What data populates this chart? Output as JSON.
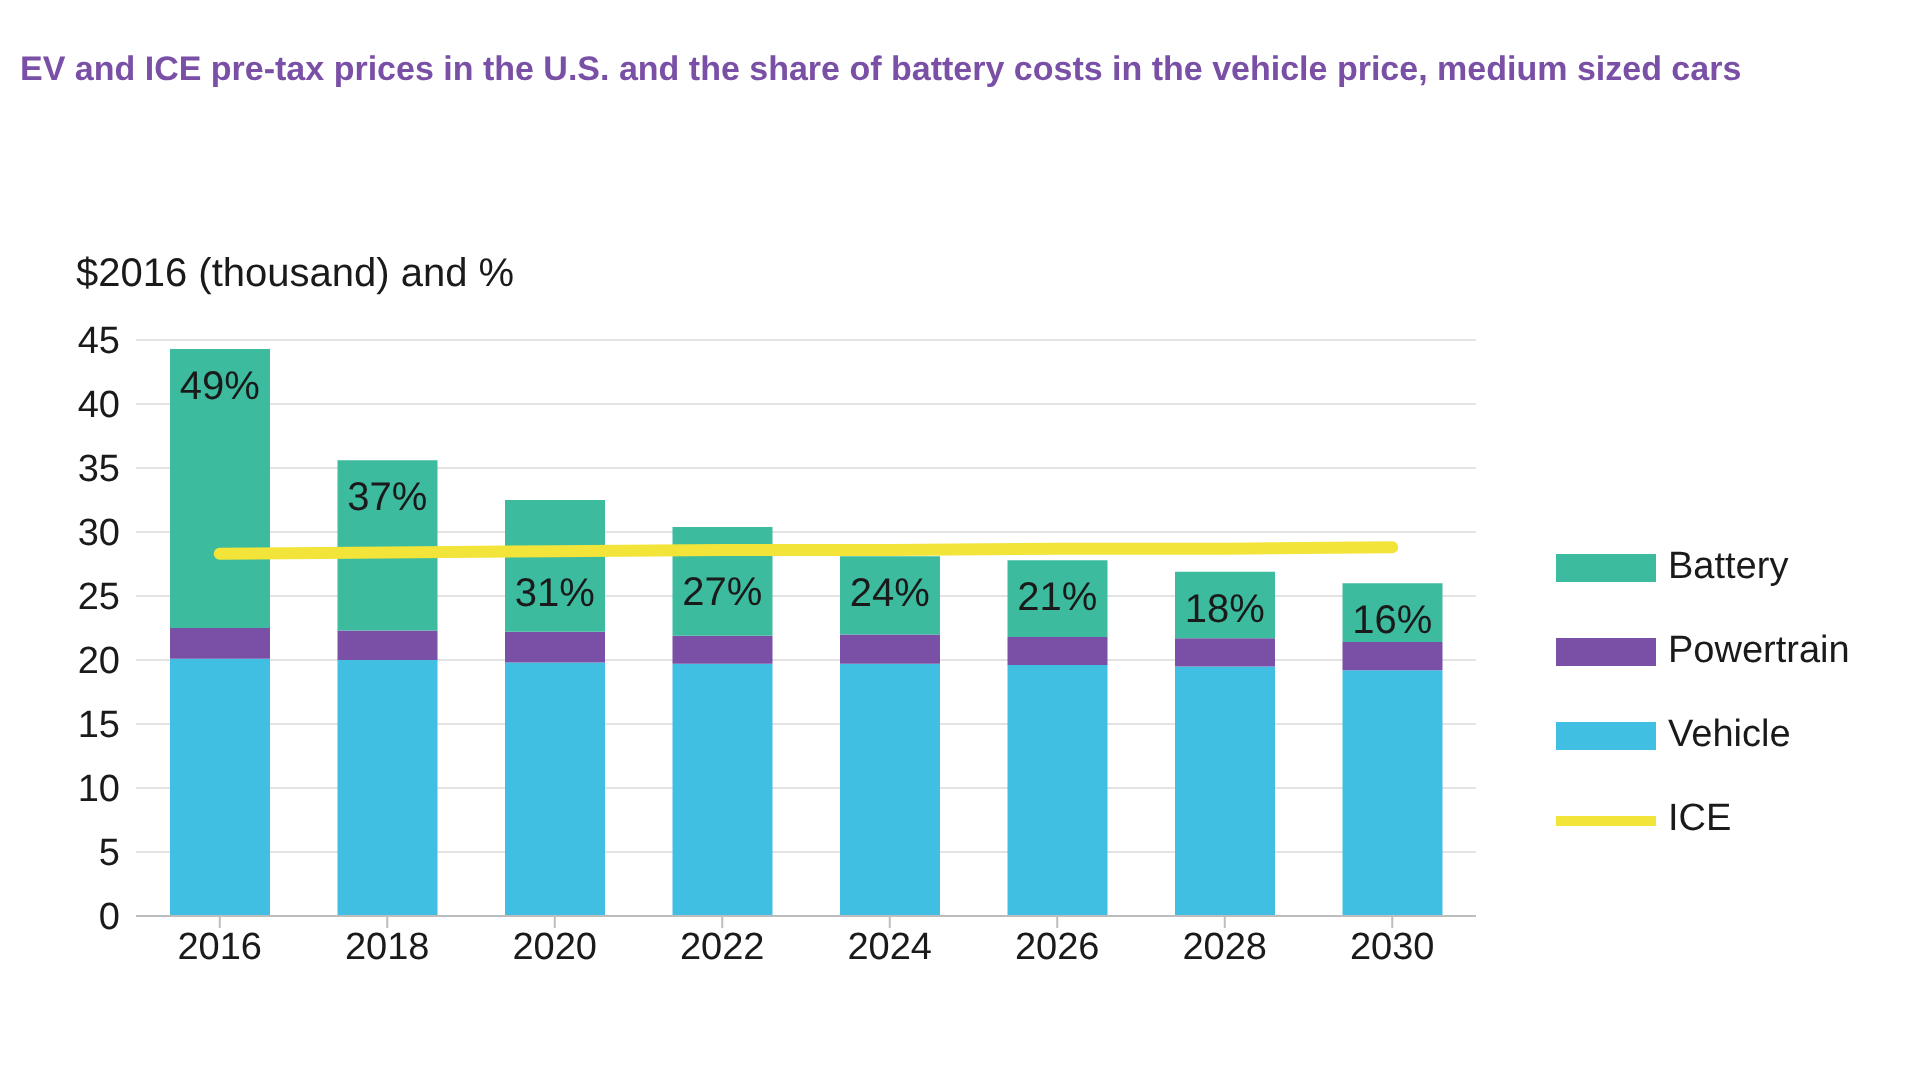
{
  "chart_data": {
    "type": "bar",
    "title": "EV and ICE pre-tax prices in the U.S. and the share of battery costs in the vehicle price, medium sized cars",
    "ylabel": "$2016 (thousand) and %",
    "categories": [
      "2016",
      "2018",
      "2020",
      "2022",
      "2024",
      "2026",
      "2028",
      "2030"
    ],
    "stacked": true,
    "series": [
      {
        "name": "Vehicle",
        "color": "#41bfe3",
        "values": [
          20.1,
          20.0,
          19.8,
          19.7,
          19.7,
          19.6,
          19.5,
          19.2
        ]
      },
      {
        "name": "Powertrain",
        "color": "#7a4fa6",
        "values": [
          2.4,
          2.3,
          2.4,
          2.2,
          2.3,
          2.2,
          2.2,
          2.2
        ]
      },
      {
        "name": "Battery",
        "color": "#3dbb9f",
        "values": [
          21.8,
          13.3,
          10.3,
          8.5,
          6.1,
          6.0,
          5.2,
          4.6
        ]
      },
      {
        "name": "ICE",
        "type": "line",
        "color": "#f3e43a",
        "values": [
          28.3,
          28.4,
          28.5,
          28.6,
          28.6,
          28.7,
          28.7,
          28.8
        ]
      }
    ],
    "annotations": [
      "49%",
      "37%",
      "31%",
      "27%",
      "24%",
      "21%",
      "18%",
      "16%"
    ],
    "ylim": [
      0,
      45
    ],
    "yticks": [
      0,
      5,
      10,
      15,
      20,
      25,
      30,
      35,
      40,
      45
    ],
    "grid": "y",
    "legend": "right",
    "marker": "none"
  }
}
